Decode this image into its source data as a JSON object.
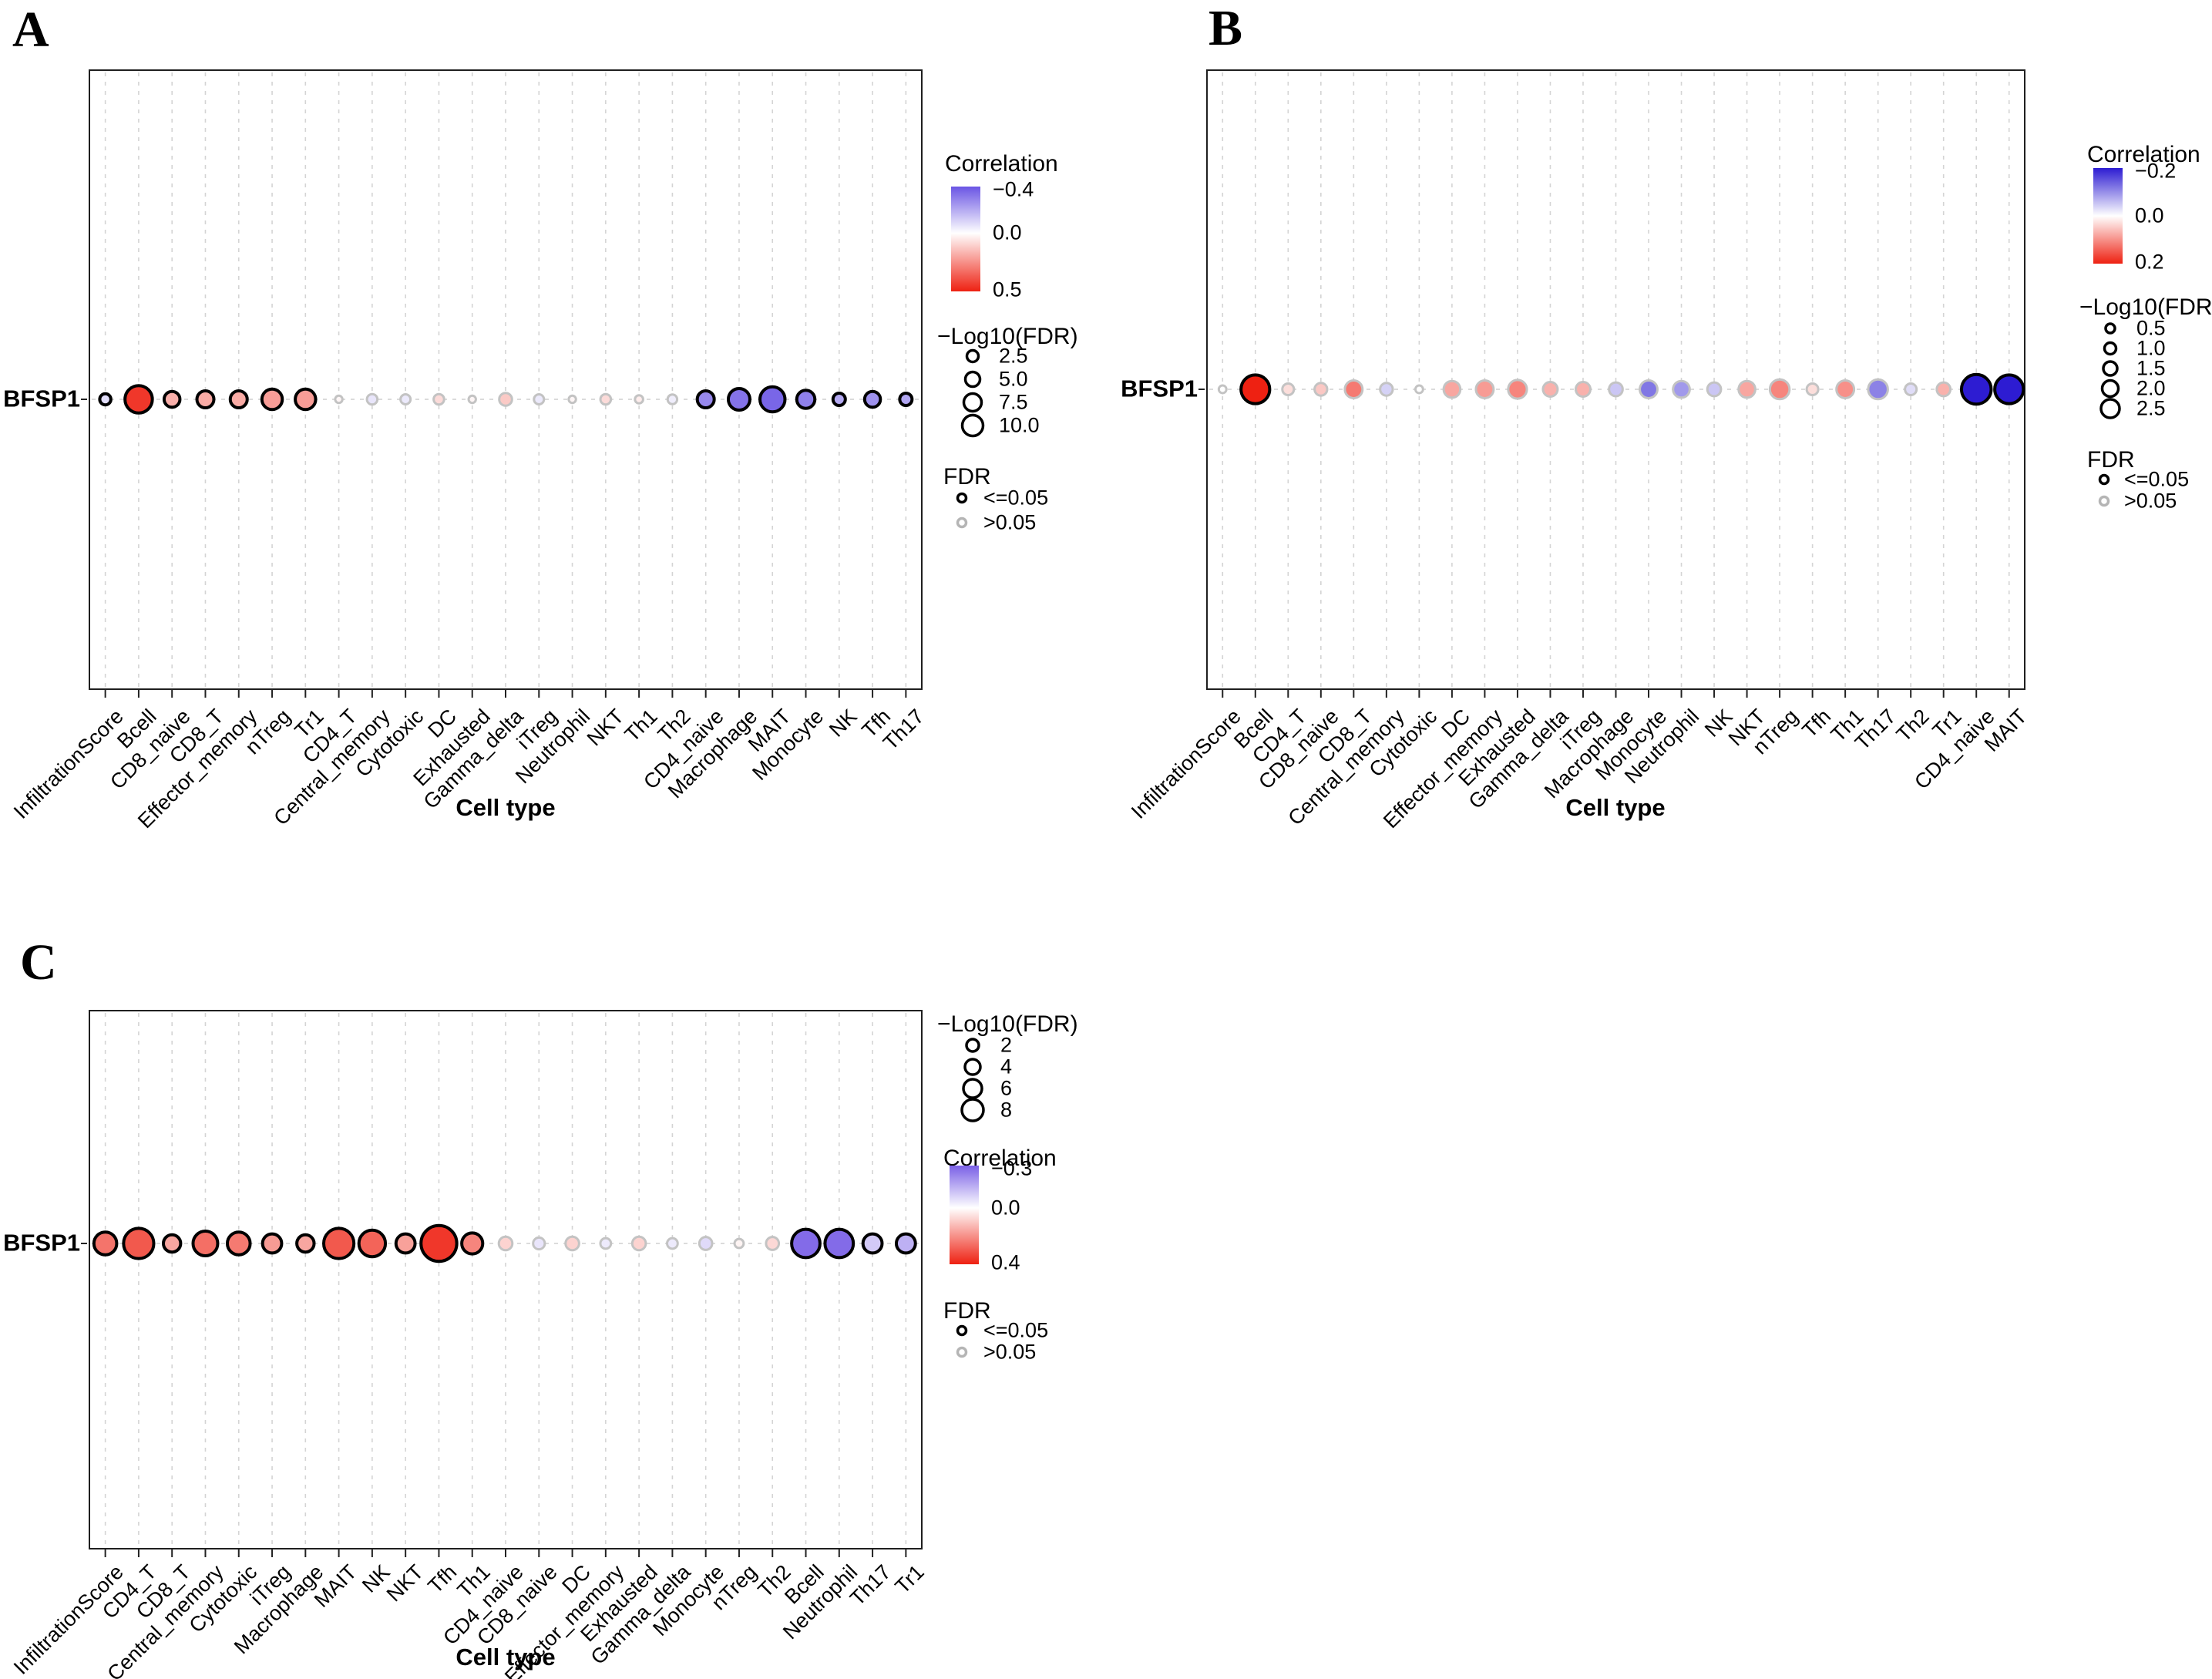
{
  "figure": {
    "panels": [
      {
        "id": "A",
        "letter": "A",
        "gene": "BFSP1",
        "x_axis_title": "Cell type",
        "legend": {
          "correlation": {
            "title": "Correlation",
            "labels": [
              "−0.4",
              "0.0",
              "0.5"
            ],
            "min": -0.4,
            "max": 0.5
          },
          "size": {
            "title": "−Log10(FDR)",
            "labels": [
              "2.5",
              "5.0",
              "7.5",
              "10.0"
            ],
            "values": [
              2.5,
              5.0,
              7.5,
              10.0
            ]
          },
          "fdr": {
            "title": "FDR",
            "items": [
              "<=0.05",
              ">0.05"
            ]
          }
        },
        "chart_data": {
          "type": "scatter",
          "ylabel": "BFSP1",
          "xlabel": "Cell type",
          "color_scale": {
            "low": -0.4,
            "mid": 0.0,
            "high": 0.5
          },
          "points": [
            {
              "cell": "InfiltrationScore",
              "correlation": -0.08,
              "neglog10_fdr": 2.5,
              "fdr_sig": true
            },
            {
              "cell": "Bcell",
              "correlation": 0.45,
              "neglog10_fdr": 9.5,
              "fdr_sig": true
            },
            {
              "cell": "CD8_naive",
              "correlation": 0.18,
              "neglog10_fdr": 4.5,
              "fdr_sig": true
            },
            {
              "cell": "CD8_T",
              "correlation": 0.19,
              "neglog10_fdr": 5.0,
              "fdr_sig": true
            },
            {
              "cell": "Effector_memory",
              "correlation": 0.19,
              "neglog10_fdr": 5.0,
              "fdr_sig": true
            },
            {
              "cell": "nTreg",
              "correlation": 0.22,
              "neglog10_fdr": 6.5,
              "fdr_sig": true
            },
            {
              "cell": "Tr1",
              "correlation": 0.22,
              "neglog10_fdr": 6.5,
              "fdr_sig": true
            },
            {
              "cell": "CD4_T",
              "correlation": 0.02,
              "neglog10_fdr": 0.8,
              "fdr_sig": false
            },
            {
              "cell": "Central_memory",
              "correlation": -0.06,
              "neglog10_fdr": 2.2,
              "fdr_sig": false
            },
            {
              "cell": "Cytotoxic",
              "correlation": -0.05,
              "neglog10_fdr": 2.0,
              "fdr_sig": false
            },
            {
              "cell": "DC",
              "correlation": 0.08,
              "neglog10_fdr": 2.2,
              "fdr_sig": false
            },
            {
              "cell": "Exhausted",
              "correlation": 0.02,
              "neglog10_fdr": 0.8,
              "fdr_sig": false
            },
            {
              "cell": "Gamma_delta",
              "correlation": 0.12,
              "neglog10_fdr": 3.2,
              "fdr_sig": false
            },
            {
              "cell": "iTreg",
              "correlation": -0.05,
              "neglog10_fdr": 2.0,
              "fdr_sig": false
            },
            {
              "cell": "Neutrophil",
              "correlation": 0.02,
              "neglog10_fdr": 0.8,
              "fdr_sig": false
            },
            {
              "cell": "NKT",
              "correlation": 0.08,
              "neglog10_fdr": 2.2,
              "fdr_sig": false
            },
            {
              "cell": "Th1",
              "correlation": 0.04,
              "neglog10_fdr": 1.2,
              "fdr_sig": false
            },
            {
              "cell": "Th2",
              "correlation": -0.04,
              "neglog10_fdr": 1.8,
              "fdr_sig": false
            },
            {
              "cell": "CD4_naive",
              "correlation": -0.28,
              "neglog10_fdr": 5.0,
              "fdr_sig": true
            },
            {
              "cell": "Macrophage",
              "correlation": -0.33,
              "neglog10_fdr": 7.0,
              "fdr_sig": true
            },
            {
              "cell": "MAIT",
              "correlation": -0.36,
              "neglog10_fdr": 8.5,
              "fdr_sig": true
            },
            {
              "cell": "Monocyte",
              "correlation": -0.3,
              "neglog10_fdr": 5.5,
              "fdr_sig": true
            },
            {
              "cell": "NK",
              "correlation": -0.2,
              "neglog10_fdr": 3.0,
              "fdr_sig": true
            },
            {
              "cell": "Tfh",
              "correlation": -0.26,
              "neglog10_fdr": 4.5,
              "fdr_sig": true
            },
            {
              "cell": "Th17",
              "correlation": -0.21,
              "neglog10_fdr": 3.0,
              "fdr_sig": true
            }
          ]
        }
      },
      {
        "id": "B",
        "letter": "B",
        "gene": "BFSP1",
        "x_axis_title": "Cell type",
        "legend": {
          "correlation": {
            "title": "Correlation",
            "labels": [
              "−0.2",
              "0.0",
              "0.2"
            ],
            "min": -0.2,
            "max": 0.2
          },
          "size": {
            "title": "−Log10(FDR)",
            "labels": [
              "0.5",
              "1.0",
              "1.5",
              "2.0",
              "2.5"
            ],
            "values": [
              0.5,
              1.0,
              1.5,
              2.0,
              2.5
            ]
          },
          "fdr": {
            "title": "FDR",
            "items": [
              "<=0.05",
              ">0.05"
            ]
          }
        },
        "chart_data": {
          "type": "scatter",
          "ylabel": "BFSP1",
          "xlabel": "Cell type",
          "color_scale": {
            "low": -0.2,
            "mid": 0.0,
            "high": 0.2
          },
          "points": [
            {
              "cell": "InfiltrationScore",
              "correlation": 0.0,
              "neglog10_fdr": 0.3,
              "fdr_sig": false
            },
            {
              "cell": "Bcell",
              "correlation": 0.2,
              "neglog10_fdr": 2.4,
              "fdr_sig": true
            },
            {
              "cell": "CD4_T",
              "correlation": 0.03,
              "neglog10_fdr": 0.7,
              "fdr_sig": false
            },
            {
              "cell": "CD8_naive",
              "correlation": 0.05,
              "neglog10_fdr": 0.8,
              "fdr_sig": false
            },
            {
              "cell": "CD8_T",
              "correlation": 0.12,
              "neglog10_fdr": 1.3,
              "fdr_sig": false
            },
            {
              "cell": "Central_memory",
              "correlation": -0.04,
              "neglog10_fdr": 0.8,
              "fdr_sig": false
            },
            {
              "cell": "Cytotoxic",
              "correlation": 0.0,
              "neglog10_fdr": 0.3,
              "fdr_sig": false
            },
            {
              "cell": "DC",
              "correlation": 0.08,
              "neglog10_fdr": 1.2,
              "fdr_sig": false
            },
            {
              "cell": "Effector_memory",
              "correlation": 0.09,
              "neglog10_fdr": 1.3,
              "fdr_sig": false
            },
            {
              "cell": "Exhausted",
              "correlation": 0.11,
              "neglog10_fdr": 1.4,
              "fdr_sig": false
            },
            {
              "cell": "Gamma_delta",
              "correlation": 0.07,
              "neglog10_fdr": 1.0,
              "fdr_sig": false
            },
            {
              "cell": "iTreg",
              "correlation": 0.07,
              "neglog10_fdr": 1.0,
              "fdr_sig": false
            },
            {
              "cell": "Macrophage",
              "correlation": -0.05,
              "neglog10_fdr": 0.9,
              "fdr_sig": false
            },
            {
              "cell": "Monocyte",
              "correlation": -0.12,
              "neglog10_fdr": 1.3,
              "fdr_sig": false
            },
            {
              "cell": "Neutrophil",
              "correlation": -0.09,
              "neglog10_fdr": 1.2,
              "fdr_sig": false
            },
            {
              "cell": "NK",
              "correlation": -0.05,
              "neglog10_fdr": 0.9,
              "fdr_sig": false
            },
            {
              "cell": "NKT",
              "correlation": 0.08,
              "neglog10_fdr": 1.2,
              "fdr_sig": false
            },
            {
              "cell": "nTreg",
              "correlation": 0.11,
              "neglog10_fdr": 1.5,
              "fdr_sig": false
            },
            {
              "cell": "Tfh",
              "correlation": 0.03,
              "neglog10_fdr": 0.7,
              "fdr_sig": false
            },
            {
              "cell": "Th1",
              "correlation": 0.1,
              "neglog10_fdr": 1.3,
              "fdr_sig": false
            },
            {
              "cell": "Th17",
              "correlation": -0.11,
              "neglog10_fdr": 1.5,
              "fdr_sig": false
            },
            {
              "cell": "Th2",
              "correlation": -0.03,
              "neglog10_fdr": 0.7,
              "fdr_sig": false
            },
            {
              "cell": "Tr1",
              "correlation": 0.07,
              "neglog10_fdr": 0.9,
              "fdr_sig": false
            },
            {
              "cell": "CD4_naive",
              "correlation": -0.21,
              "neglog10_fdr": 2.5,
              "fdr_sig": true
            },
            {
              "cell": "MAIT",
              "correlation": -0.2,
              "neglog10_fdr": 2.4,
              "fdr_sig": true
            }
          ]
        }
      },
      {
        "id": "C",
        "letter": "C",
        "gene": "BFSP1",
        "x_axis_title": "Cell type",
        "legend": {
          "correlation": {
            "title": "Correlation",
            "labels": [
              "−0.3",
              "0.0",
              "0.4"
            ],
            "min": -0.3,
            "max": 0.4
          },
          "size": {
            "title": "−Log10(FDR)",
            "labels": [
              "2",
              "4",
              "6",
              "8"
            ],
            "values": [
              2,
              4,
              6,
              8
            ]
          },
          "fdr": {
            "title": "FDR",
            "items": [
              "<=0.05",
              ">0.05"
            ]
          }
        },
        "chart_data": {
          "type": "scatter",
          "ylabel": "BFSP1",
          "xlabel": "Cell type",
          "color_scale": {
            "low": -0.3,
            "mid": 0.0,
            "high": 0.4
          },
          "points": [
            {
              "cell": "InfiltrationScore",
              "correlation": 0.25,
              "neglog10_fdr": 4.5,
              "fdr_sig": true
            },
            {
              "cell": "CD4_T",
              "correlation": 0.3,
              "neglog10_fdr": 6.5,
              "fdr_sig": true
            },
            {
              "cell": "CD8_T",
              "correlation": 0.16,
              "neglog10_fdr": 3.0,
              "fdr_sig": true
            },
            {
              "cell": "Central_memory",
              "correlation": 0.26,
              "neglog10_fdr": 5.0,
              "fdr_sig": true
            },
            {
              "cell": "Cytotoxic",
              "correlation": 0.24,
              "neglog10_fdr": 4.5,
              "fdr_sig": true
            },
            {
              "cell": "iTreg",
              "correlation": 0.18,
              "neglog10_fdr": 3.5,
              "fdr_sig": true
            },
            {
              "cell": "Macrophage",
              "correlation": 0.16,
              "neglog10_fdr": 3.0,
              "fdr_sig": true
            },
            {
              "cell": "MAIT",
              "correlation": 0.3,
              "neglog10_fdr": 6.5,
              "fdr_sig": true
            },
            {
              "cell": "NK",
              "correlation": 0.28,
              "neglog10_fdr": 5.5,
              "fdr_sig": true
            },
            {
              "cell": "NKT",
              "correlation": 0.17,
              "neglog10_fdr": 3.5,
              "fdr_sig": true
            },
            {
              "cell": "Tfh",
              "correlation": 0.36,
              "neglog10_fdr": 8.0,
              "fdr_sig": true
            },
            {
              "cell": "Th1",
              "correlation": 0.22,
              "neglog10_fdr": 4.0,
              "fdr_sig": true
            },
            {
              "cell": "CD4_naive",
              "correlation": 0.08,
              "neglog10_fdr": 2.0,
              "fdr_sig": false
            },
            {
              "cell": "CD8_naive",
              "correlation": -0.05,
              "neglog10_fdr": 1.5,
              "fdr_sig": false
            },
            {
              "cell": "DC",
              "correlation": 0.08,
              "neglog10_fdr": 2.0,
              "fdr_sig": false
            },
            {
              "cell": "Effector_memory",
              "correlation": -0.04,
              "neglog10_fdr": 1.2,
              "fdr_sig": false
            },
            {
              "cell": "Exhausted",
              "correlation": 0.08,
              "neglog10_fdr": 2.0,
              "fdr_sig": false
            },
            {
              "cell": "Gamma_delta",
              "correlation": -0.04,
              "neglog10_fdr": 1.2,
              "fdr_sig": false
            },
            {
              "cell": "Monocyte",
              "correlation": -0.07,
              "neglog10_fdr": 1.8,
              "fdr_sig": false
            },
            {
              "cell": "nTreg",
              "correlation": 0.02,
              "neglog10_fdr": 0.8,
              "fdr_sig": false
            },
            {
              "cell": "Th2",
              "correlation": 0.07,
              "neglog10_fdr": 1.8,
              "fdr_sig": false
            },
            {
              "cell": "Bcell",
              "correlation": -0.28,
              "neglog10_fdr": 6.0,
              "fdr_sig": true
            },
            {
              "cell": "Neutrophil",
              "correlation": -0.28,
              "neglog10_fdr": 6.0,
              "fdr_sig": true
            },
            {
              "cell": "Th17",
              "correlation": -0.1,
              "neglog10_fdr": 3.5,
              "fdr_sig": true
            },
            {
              "cell": "Tr1",
              "correlation": -0.15,
              "neglog10_fdr": 3.5,
              "fdr_sig": true
            }
          ]
        }
      }
    ]
  }
}
